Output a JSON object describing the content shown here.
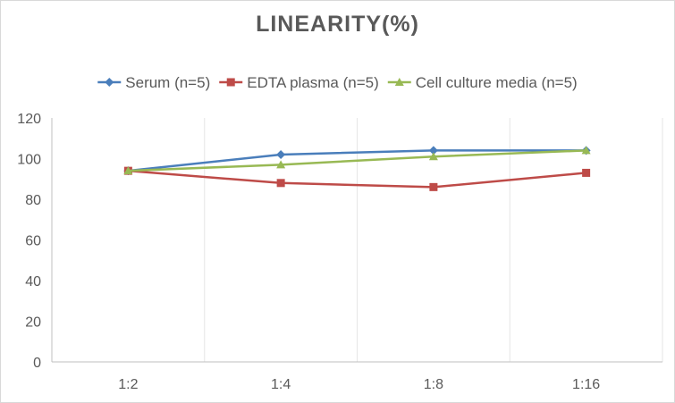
{
  "chart_data": {
    "type": "line",
    "title": "LINEARITY(%)",
    "xlabel": "",
    "ylabel": "",
    "categories": [
      "1:2",
      "1:4",
      "1:8",
      "1:16"
    ],
    "ylim": [
      0,
      120
    ],
    "yticks": [
      0,
      20,
      40,
      60,
      80,
      100,
      120
    ],
    "grid": "vertical category gridlines",
    "legend_position": "top",
    "series": [
      {
        "name": "Serum (n=5)",
        "values": [
          94,
          102,
          104,
          104
        ],
        "color": "#4a7ebb",
        "marker": "diamond"
      },
      {
        "name": "EDTA plasma (n=5)",
        "values": [
          94,
          88,
          86,
          93
        ],
        "color": "#be4b48",
        "marker": "square"
      },
      {
        "name": "Cell culture media (n=5)",
        "values": [
          94,
          97,
          101,
          104
        ],
        "color": "#98b954",
        "marker": "triangle"
      }
    ]
  }
}
